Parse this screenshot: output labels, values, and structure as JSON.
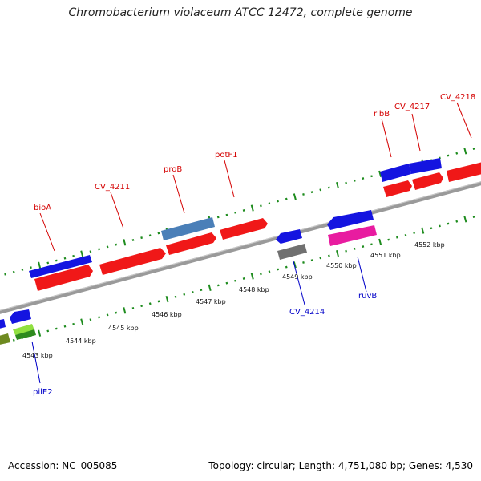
{
  "title": "Chromobacterium violaceum ATCC 12472, complete genome",
  "footer": {
    "accession": "Accession: NC_005085",
    "summary": "Topology: circular; Length: 4,751,080 bp; Genes: 4,530"
  },
  "colors": {
    "backbone": "#8a8a8a",
    "tick": "#1e8c1e",
    "label_forward": "#d40000",
    "label_reverse": "#0000c8",
    "gene_red": "#f01818",
    "gene_blue": "#1414e0",
    "gene_steel": "#4a7fb8",
    "gene_gray": "#707070",
    "gene_pink": "#e81ca0",
    "gene_lime": "#90e040",
    "gene_green": "#2e8a1e",
    "gene_olive": "#6e8a20"
  },
  "scale_labels": [
    {
      "text": "4543 kbp"
    },
    {
      "text": "4544 kbp"
    },
    {
      "text": "4545 kbp"
    },
    {
      "text": "4546 kbp"
    },
    {
      "text": "4547 kbp"
    },
    {
      "text": "4548 kbp"
    },
    {
      "text": "4549 kbp"
    },
    {
      "text": "4550 kbp"
    },
    {
      "text": "4551 kbp"
    },
    {
      "text": "4552 kbp"
    }
  ],
  "gene_labels": [
    {
      "text": "bioA",
      "strand": "forward"
    },
    {
      "text": "CV_4211",
      "strand": "forward"
    },
    {
      "text": "proB",
      "strand": "forward"
    },
    {
      "text": "potF1",
      "strand": "forward"
    },
    {
      "text": "ribB",
      "strand": "forward"
    },
    {
      "text": "CV_4217",
      "strand": "forward"
    },
    {
      "text": "CV_4218",
      "strand": "forward"
    },
    {
      "text": "CV_4214",
      "strand": "reverse"
    },
    {
      "text": "ruvB",
      "strand": "reverse"
    },
    {
      "text": "pilE2",
      "strand": "reverse"
    }
  ]
}
